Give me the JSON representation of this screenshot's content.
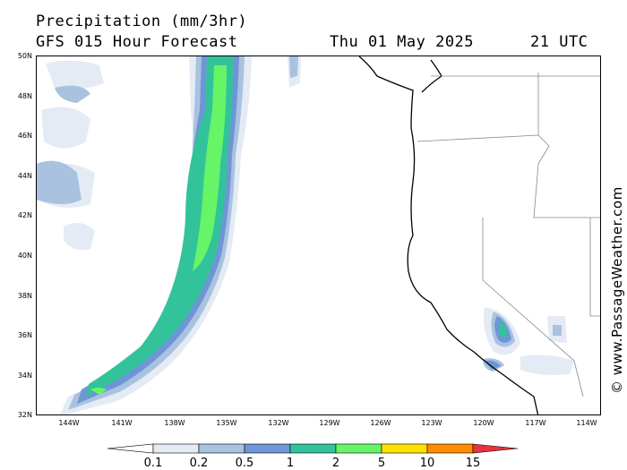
{
  "header": {
    "title": "Precipitation (mm/3hr)",
    "subtitle": "GFS 015 Hour Forecast",
    "date": "Thu 01 May 2025",
    "time": "21 UTC"
  },
  "credit": "© www.PassageWeather.com",
  "latitude_labels": [
    "50N",
    "48N",
    "46N",
    "44N",
    "42N",
    "40N",
    "38N",
    "36N",
    "34N",
    "32N"
  ],
  "longitude_labels": [
    "144W",
    "141W",
    "138W",
    "135W",
    "132W",
    "129W",
    "126W",
    "123W",
    "120W",
    "117W",
    "114W"
  ],
  "legend": {
    "thresholds": [
      "0.1",
      "0.2",
      "0.5",
      "1",
      "2",
      "5",
      "10",
      "15"
    ],
    "colors": [
      "#ffffff",
      "#e4ebf5",
      "#a9c2df",
      "#6f95d6",
      "#33c39a",
      "#66f566",
      "#ffe100",
      "#ff8c00",
      "#e8323c"
    ]
  }
}
